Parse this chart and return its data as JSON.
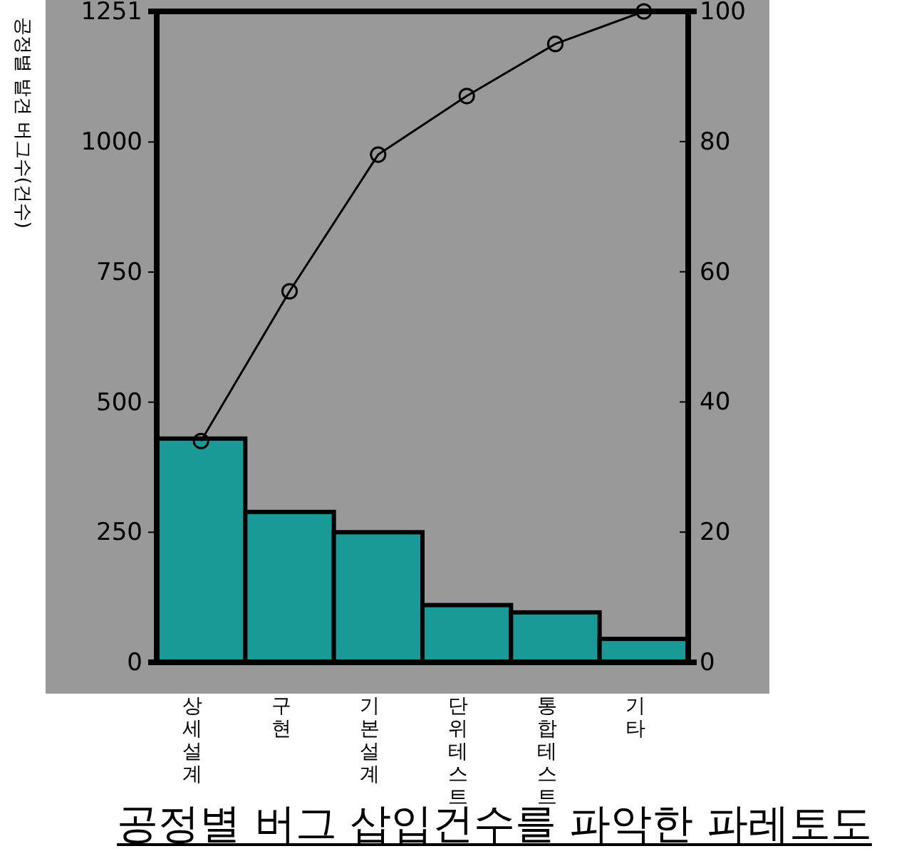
{
  "chart_data": {
    "type": "bar",
    "title": "공정별 버그 삽입건수를 파악한 파레토도",
    "ylabel": "공정별 발견 버그수(건수)",
    "categories": [
      "상세설계",
      "구현",
      "기본설계",
      "단위테스트",
      "통합테스트",
      "기타"
    ],
    "series": [
      {
        "color": "#1a9a96",
        "values": [
          430,
          289,
          250,
          110,
          96,
          45
        ]
      },
      {
        "type": "line",
        "axis": "y2",
        "color": "#000000",
        "values": [
          34,
          57,
          78,
          87,
          95,
          100
        ]
      }
    ],
    "ylim": [
      0,
      1251
    ],
    "yticks": [
      0,
      250,
      500,
      750,
      1000,
      1251
    ],
    "y2lim": [
      0,
      100
    ],
    "y2ticks": [
      0,
      20,
      40,
      60,
      80,
      100
    ],
    "marker": "circle",
    "grid": false
  }
}
